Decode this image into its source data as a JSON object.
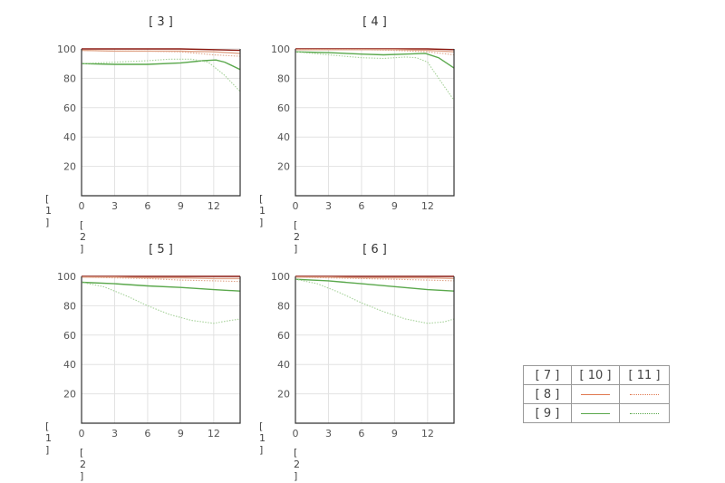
{
  "chart_data": [
    {
      "type": "line",
      "title": "[ 3 ]",
      "ylabel": "[ 1 ]",
      "xlabel": "[ 2 ]",
      "xlim": [
        0,
        14.4
      ],
      "ylim": [
        0,
        100
      ],
      "xticks": [
        "0",
        "3",
        "6",
        "9",
        "12"
      ],
      "yticks": [
        "20",
        "40",
        "60",
        "80",
        "100"
      ],
      "grid": true,
      "series": [
        {
          "ref": "s-10",
          "color": "#8b1a12",
          "style": "solid",
          "points": [
            [
              0,
              100
            ],
            [
              3,
              100
            ],
            [
              6,
              100
            ],
            [
              9,
              100
            ],
            [
              12,
              99.5
            ],
            [
              14.4,
              99
            ]
          ]
        },
        {
          "ref": "s-20",
          "color": "#e0a58a",
          "style": "solid",
          "points": [
            [
              0,
              99
            ],
            [
              3,
              98.5
            ],
            [
              6,
              98.5
            ],
            [
              9,
              98.5
            ],
            [
              12,
              98
            ],
            [
              14.4,
              97
            ]
          ]
        },
        {
          "ref": "s-20d",
          "color": "#e0a58a",
          "style": "dotted",
          "points": [
            [
              0,
              99
            ],
            [
              3,
              98.5
            ],
            [
              6,
              98.5
            ],
            [
              9,
              98
            ],
            [
              12,
              96
            ],
            [
              14.4,
              95
            ]
          ]
        },
        {
          "ref": "s-30",
          "color": "#5aa84c",
          "style": "solid",
          "points": [
            [
              0,
              90
            ],
            [
              3,
              89.5
            ],
            [
              6,
              89.5
            ],
            [
              9,
              90.5
            ],
            [
              11,
              92
            ],
            [
              12.2,
              92.5
            ],
            [
              13,
              91
            ],
            [
              14.4,
              86
            ]
          ]
        },
        {
          "ref": "s-30d",
          "color": "#a6d29a",
          "style": "dotted",
          "points": [
            [
              0,
              90
            ],
            [
              3,
              91
            ],
            [
              6,
              92
            ],
            [
              8,
              93
            ],
            [
              10,
              93
            ],
            [
              11.5,
              91
            ],
            [
              13,
              82
            ],
            [
              14.4,
              71
            ]
          ]
        }
      ]
    },
    {
      "type": "line",
      "title": "[ 4 ]",
      "ylabel": "[ 1 ]",
      "xlabel": "[ 2 ]",
      "xlim": [
        0,
        14.4
      ],
      "ylim": [
        0,
        100
      ],
      "xticks": [
        "0",
        "3",
        "6",
        "9",
        "12"
      ],
      "yticks": [
        "20",
        "40",
        "60",
        "80",
        "100"
      ],
      "grid": true,
      "series": [
        {
          "ref": "s-10",
          "color": "#8b1a12",
          "style": "solid",
          "points": [
            [
              0,
              100
            ],
            [
              3,
              100
            ],
            [
              6,
              100
            ],
            [
              9,
              100
            ],
            [
              12,
              100
            ],
            [
              14.4,
              99.5
            ]
          ]
        },
        {
          "ref": "s-20",
          "color": "#e0a58a",
          "style": "solid",
          "points": [
            [
              0,
              99.5
            ],
            [
              3,
              99.5
            ],
            [
              6,
              99.5
            ],
            [
              9,
              99.5
            ],
            [
              12,
              99
            ],
            [
              14.4,
              98
            ]
          ]
        },
        {
          "ref": "s-20d",
          "color": "#e0a58a",
          "style": "dotted",
          "points": [
            [
              0,
              99.5
            ],
            [
              3,
              99.5
            ],
            [
              6,
              99.5
            ],
            [
              9,
              99
            ],
            [
              12,
              98
            ],
            [
              14.4,
              96
            ]
          ]
        },
        {
          "ref": "s-30",
          "color": "#5aa84c",
          "style": "solid",
          "points": [
            [
              0,
              98
            ],
            [
              3,
              97.5
            ],
            [
              6,
              96.5
            ],
            [
              8,
              96
            ],
            [
              10,
              96.5
            ],
            [
              11.8,
              97
            ],
            [
              13,
              94
            ],
            [
              14.4,
              87
            ]
          ]
        },
        {
          "ref": "s-30d",
          "color": "#a6d29a",
          "style": "dotted",
          "points": [
            [
              0,
              98
            ],
            [
              3,
              96
            ],
            [
              6,
              94
            ],
            [
              8,
              93.5
            ],
            [
              10,
              94.5
            ],
            [
              11,
              94
            ],
            [
              12,
              91
            ],
            [
              13,
              80
            ],
            [
              14.4,
              65
            ]
          ]
        }
      ]
    },
    {
      "type": "line",
      "title": "[ 5 ]",
      "ylabel": "[ 1 ]",
      "xlabel": "[ 2 ]",
      "xlim": [
        0,
        14.4
      ],
      "ylim": [
        0,
        100
      ],
      "xticks": [
        "0",
        "3",
        "6",
        "9",
        "12"
      ],
      "yticks": [
        "20",
        "40",
        "60",
        "80",
        "100"
      ],
      "grid": true,
      "series": [
        {
          "ref": "s-10",
          "color": "#8b1a12",
          "style": "solid",
          "points": [
            [
              0,
              100
            ],
            [
              3,
              100
            ],
            [
              6,
              100
            ],
            [
              9,
              100
            ],
            [
              12,
              100
            ],
            [
              14.4,
              100
            ]
          ]
        },
        {
          "ref": "s-20",
          "color": "#e0a58a",
          "style": "solid",
          "points": [
            [
              0,
              99.5
            ],
            [
              3,
              99.5
            ],
            [
              6,
              99
            ],
            [
              9,
              99
            ],
            [
              12,
              98.5
            ],
            [
              14.4,
              98.5
            ]
          ]
        },
        {
          "ref": "s-20d",
          "color": "#e0a58a",
          "style": "dotted",
          "points": [
            [
              0,
              99.5
            ],
            [
              3,
              99
            ],
            [
              6,
              98.5
            ],
            [
              9,
              97.5
            ],
            [
              12,
              97
            ],
            [
              14.4,
              96.5
            ]
          ]
        },
        {
          "ref": "s-30",
          "color": "#5aa84c",
          "style": "solid",
          "points": [
            [
              0,
              96
            ],
            [
              3,
              95
            ],
            [
              6,
              93.5
            ],
            [
              9,
              92.5
            ],
            [
              12,
              91
            ],
            [
              14.4,
              90
            ]
          ]
        },
        {
          "ref": "s-30d",
          "color": "#a6d29a",
          "style": "dotted",
          "points": [
            [
              0,
              96
            ],
            [
              2,
              93
            ],
            [
              4,
              87
            ],
            [
              6,
              80
            ],
            [
              8,
              74
            ],
            [
              10,
              70
            ],
            [
              12,
              68
            ],
            [
              13.5,
              70
            ],
            [
              14.4,
              71
            ]
          ]
        }
      ]
    },
    {
      "type": "line",
      "title": "[ 6 ]",
      "ylabel": "[ 1 ]",
      "xlabel": "[ 2 ]",
      "xlim": [
        0,
        14.4
      ],
      "ylim": [
        0,
        100
      ],
      "xticks": [
        "0",
        "3",
        "6",
        "9",
        "12"
      ],
      "yticks": [
        "20",
        "40",
        "60",
        "80",
        "100"
      ],
      "grid": true,
      "series": [
        {
          "ref": "s-10",
          "color": "#8b1a12",
          "style": "solid",
          "points": [
            [
              0,
              100
            ],
            [
              3,
              100
            ],
            [
              6,
              100
            ],
            [
              9,
              100
            ],
            [
              12,
              100
            ],
            [
              14.4,
              100
            ]
          ]
        },
        {
          "ref": "s-20",
          "color": "#e0a58a",
          "style": "solid",
          "points": [
            [
              0,
              99.5
            ],
            [
              3,
              99.5
            ],
            [
              6,
              99
            ],
            [
              9,
              99
            ],
            [
              12,
              99
            ],
            [
              14.4,
              98.5
            ]
          ]
        },
        {
          "ref": "s-20d",
          "color": "#e0a58a",
          "style": "dotted",
          "points": [
            [
              0,
              99.5
            ],
            [
              3,
              99
            ],
            [
              6,
              98.5
            ],
            [
              9,
              98
            ],
            [
              12,
              97.5
            ],
            [
              14.4,
              97
            ]
          ]
        },
        {
          "ref": "s-30",
          "color": "#5aa84c",
          "style": "solid",
          "points": [
            [
              0,
              98
            ],
            [
              3,
              97
            ],
            [
              6,
              95
            ],
            [
              9,
              93
            ],
            [
              12,
              91
            ],
            [
              14.4,
              90
            ]
          ]
        },
        {
          "ref": "s-30d",
          "color": "#a6d29a",
          "style": "dotted",
          "points": [
            [
              0,
              98
            ],
            [
              2,
              95
            ],
            [
              4,
              89
            ],
            [
              6,
              82
            ],
            [
              8,
              76
            ],
            [
              10,
              71
            ],
            [
              12,
              68
            ],
            [
              13.5,
              69
            ],
            [
              14.4,
              71
            ]
          ]
        }
      ]
    }
  ],
  "legend": {
    "header": [
      "[ 7 ]",
      "[ 10 ]",
      "[ 11 ]"
    ],
    "rows": [
      {
        "label": "[ 8 ]",
        "color": "#e07850"
      },
      {
        "label": "[ 9 ]",
        "color": "#5aa84c"
      }
    ]
  }
}
